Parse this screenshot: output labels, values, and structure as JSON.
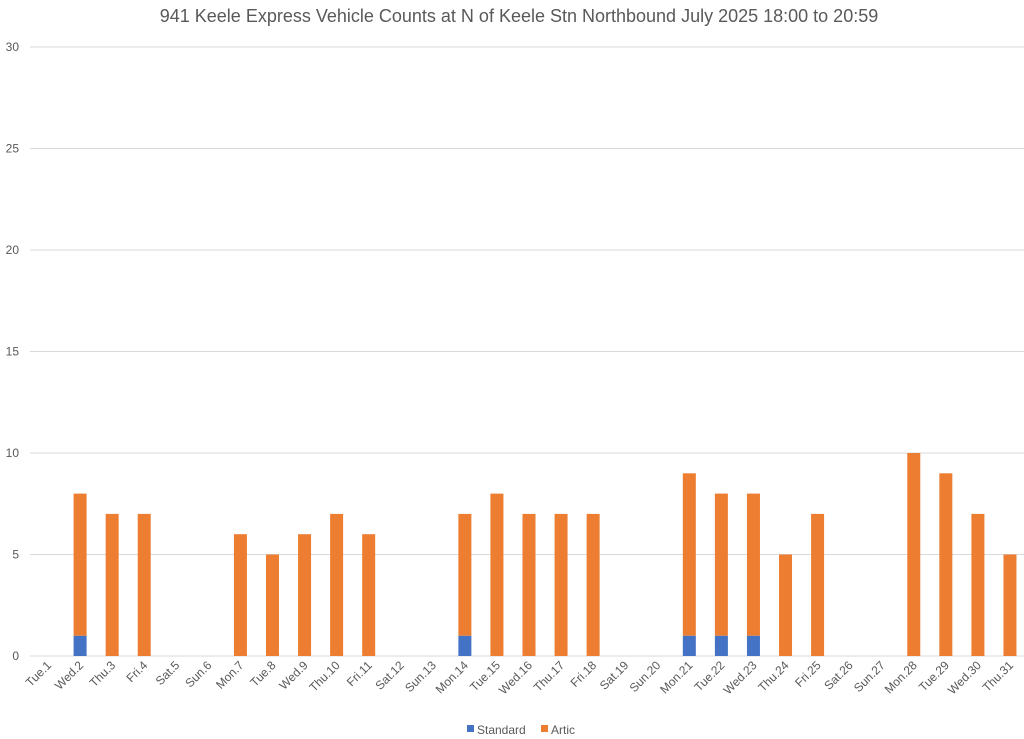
{
  "chart_data": {
    "type": "bar",
    "stacked": true,
    "title": "941 Keele Express Vehicle Counts at N of Keele Stn Northbound July 2025  18:00 to 20:59",
    "xlabel": "",
    "ylabel": "",
    "ylim": [
      0,
      30
    ],
    "yticks": [
      0,
      5,
      10,
      15,
      20,
      25,
      30
    ],
    "grid": true,
    "legend_position": "bottom",
    "categories": [
      "Tue.1",
      "Wed.2",
      "Thu.3",
      "Fri.4",
      "Sat.5",
      "Sun.6",
      "Mon.7",
      "Tue.8",
      "Wed.9",
      "Thu.10",
      "Fri.11",
      "Sat.12",
      "Sun.13",
      "Mon.14",
      "Tue.15",
      "Wed.16",
      "Thu.17",
      "Fri.18",
      "Sat.19",
      "Sun.20",
      "Mon.21",
      "Tue.22",
      "Wed.23",
      "Thu.24",
      "Fri.25",
      "Sat.26",
      "Sun.27",
      "Mon.28",
      "Tue.29",
      "Wed.30",
      "Thu.31"
    ],
    "series": [
      {
        "name": "Standard",
        "color": "#4472c4",
        "values": [
          0,
          1,
          0,
          0,
          0,
          0,
          0,
          0,
          0,
          0,
          0,
          0,
          0,
          1,
          0,
          0,
          0,
          0,
          0,
          0,
          1,
          1,
          1,
          0,
          0,
          0,
          0,
          0,
          0,
          0,
          0
        ]
      },
      {
        "name": "Artic",
        "color": "#ed7d31",
        "values": [
          0,
          7,
          7,
          7,
          0,
          0,
          6,
          5,
          6,
          7,
          6,
          0,
          0,
          6,
          8,
          7,
          7,
          7,
          0,
          0,
          8,
          7,
          7,
          5,
          7,
          0,
          0,
          10,
          9,
          7,
          5
        ]
      }
    ]
  }
}
